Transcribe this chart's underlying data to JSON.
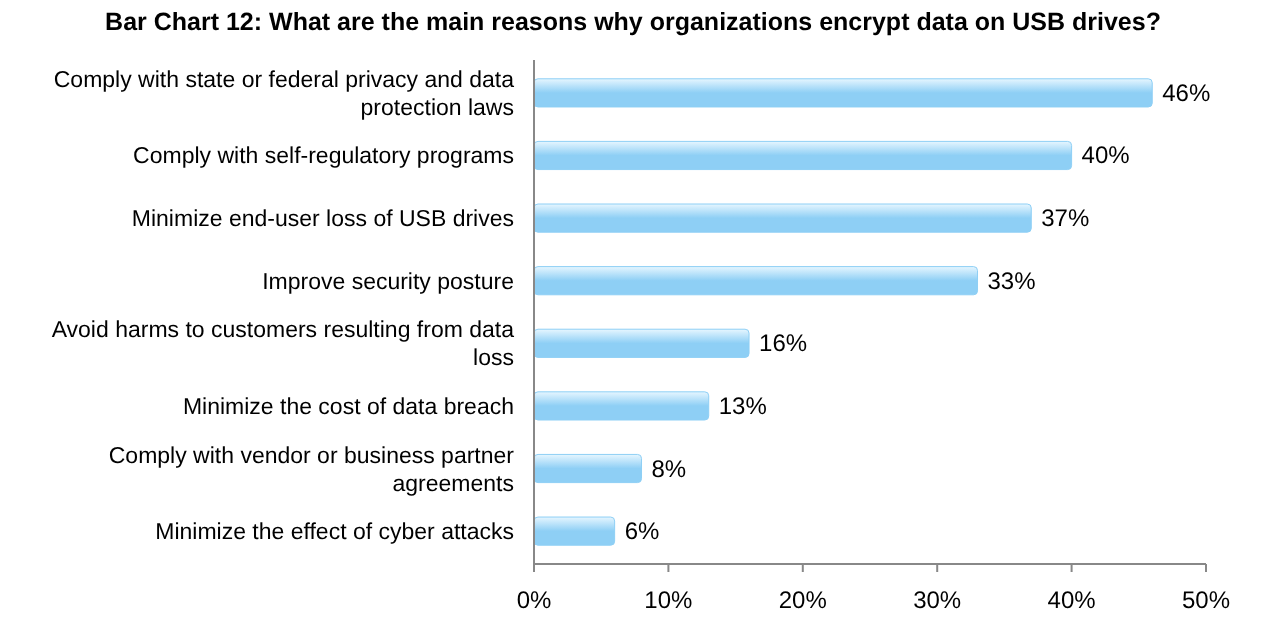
{
  "chart_data": {
    "type": "bar",
    "orientation": "horizontal",
    "title": "Bar Chart 12: What are the main reasons why organizations encrypt data on USB drives?",
    "categories": [
      "Comply with state or federal privacy and data protection laws",
      "Comply with self-regulatory programs",
      "Minimize end-user loss of USB drives",
      "Improve security posture",
      "Avoid harms to customers resulting from data loss",
      "Minimize the cost of data breach",
      "Comply with vendor or business partner agreements",
      "Minimize the effect of cyber attacks"
    ],
    "values": [
      46,
      40,
      37,
      33,
      16,
      13,
      8,
      6
    ],
    "value_labels": [
      "46%",
      "40%",
      "37%",
      "33%",
      "16%",
      "13%",
      "8%",
      "6%"
    ],
    "color": "#8ecff5",
    "xlim": [
      0,
      50
    ],
    "xticks": [
      {
        "value": 0,
        "label": "0%"
      },
      {
        "value": 10,
        "label": "10%"
      },
      {
        "value": 20,
        "label": "20%"
      },
      {
        "value": 30,
        "label": "30%"
      },
      {
        "value": 40,
        "label": "40%"
      },
      {
        "value": 50,
        "label": "50%"
      }
    ],
    "grid": false
  }
}
